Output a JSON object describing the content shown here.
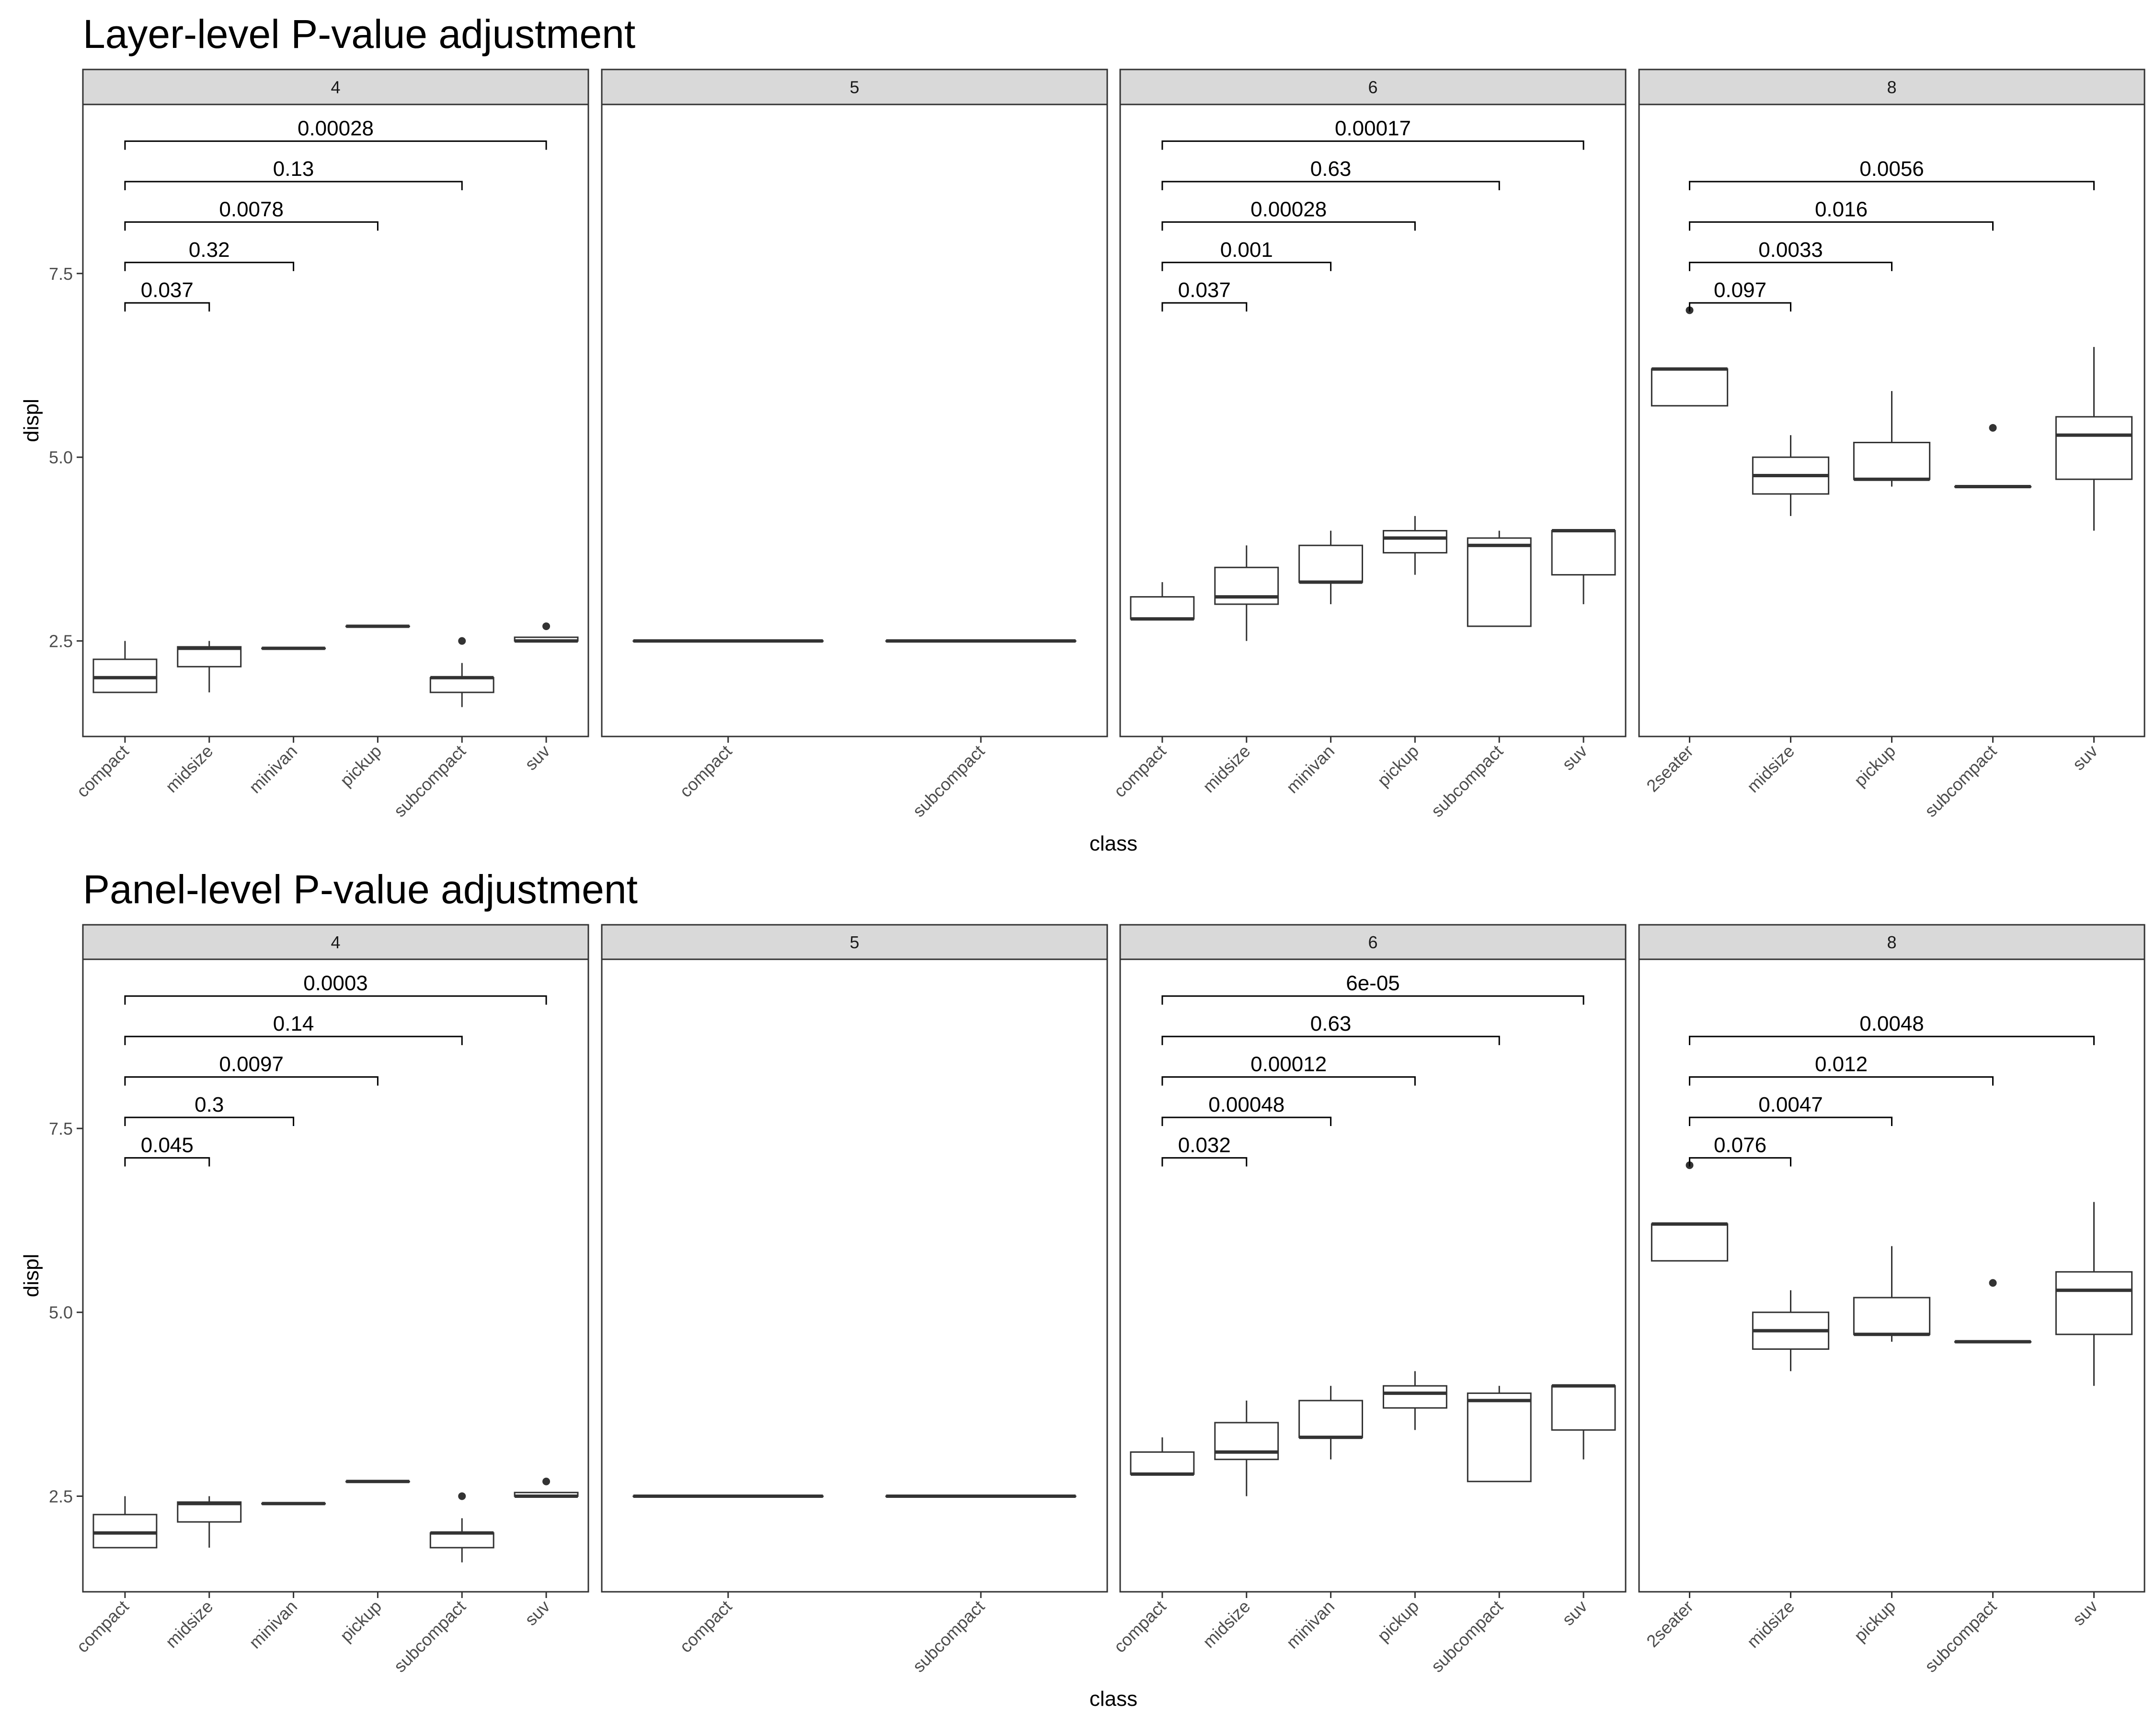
{
  "chart_data": [
    {
      "type": "boxplot",
      "title": "Layer-level P-value adjustment",
      "xlabel": "class",
      "ylabel": "displ",
      "ylim": [
        1.2,
        9.8
      ],
      "yticks": [
        "2.5",
        "5.0",
        "7.5"
      ],
      "ytick_values": [
        2.5,
        5.0,
        7.5
      ],
      "grid": false,
      "panels": [
        {
          "strip": "4",
          "categories": [
            "compact",
            "midsize",
            "minivan",
            "pickup",
            "subcompact",
            "suv"
          ],
          "boxes": [
            {
              "min": 1.8,
              "q1": 1.8,
              "median": 2.0,
              "q3": 2.25,
              "max": 2.5,
              "outliers": []
            },
            {
              "min": 1.8,
              "q1": 2.15,
              "median": 2.4,
              "q3": 2.42,
              "max": 2.5,
              "outliers": []
            },
            {
              "min": 2.4,
              "q1": 2.4,
              "median": 2.4,
              "q3": 2.4,
              "max": 2.4,
              "outliers": []
            },
            {
              "min": 2.7,
              "q1": 2.7,
              "median": 2.7,
              "q3": 2.7,
              "max": 2.7,
              "outliers": []
            },
            {
              "min": 1.6,
              "q1": 1.8,
              "median": 2.0,
              "q3": 2.0,
              "max": 2.2,
              "outliers": [
                2.5
              ]
            },
            {
              "min": 2.5,
              "q1": 2.5,
              "median": 2.5,
              "q3": 2.55,
              "max": 2.55,
              "outliers": [
                2.7
              ]
            }
          ],
          "brackets": [
            {
              "from": 0,
              "to": 1,
              "y": 7.1,
              "label": "0.037"
            },
            {
              "from": 0,
              "to": 2,
              "y": 7.65,
              "label": "0.32"
            },
            {
              "from": 0,
              "to": 3,
              "y": 8.2,
              "label": "0.0078"
            },
            {
              "from": 0,
              "to": 4,
              "y": 8.75,
              "label": "0.13"
            },
            {
              "from": 0,
              "to": 5,
              "y": 9.3,
              "label": "0.00028"
            }
          ]
        },
        {
          "strip": "5",
          "categories": [
            "compact",
            "subcompact"
          ],
          "boxes": [
            {
              "min": 2.5,
              "q1": 2.5,
              "median": 2.5,
              "q3": 2.5,
              "max": 2.5,
              "outliers": []
            },
            {
              "min": 2.5,
              "q1": 2.5,
              "median": 2.5,
              "q3": 2.5,
              "max": 2.5,
              "outliers": []
            }
          ],
          "brackets": []
        },
        {
          "strip": "6",
          "categories": [
            "compact",
            "midsize",
            "minivan",
            "pickup",
            "subcompact",
            "suv"
          ],
          "boxes": [
            {
              "min": 2.8,
              "q1": 2.8,
              "median": 2.8,
              "q3": 3.1,
              "max": 3.3,
              "outliers": []
            },
            {
              "min": 2.5,
              "q1": 3.0,
              "median": 3.1,
              "q3": 3.5,
              "max": 3.8,
              "outliers": []
            },
            {
              "min": 3.0,
              "q1": 3.3,
              "median": 3.3,
              "q3": 3.8,
              "max": 4.0,
              "outliers": []
            },
            {
              "min": 3.4,
              "q1": 3.7,
              "median": 3.9,
              "q3": 4.0,
              "max": 4.2,
              "outliers": []
            },
            {
              "min": 2.7,
              "q1": 2.7,
              "median": 3.8,
              "q3": 3.9,
              "max": 4.0,
              "outliers": []
            },
            {
              "min": 3.0,
              "q1": 3.4,
              "median": 4.0,
              "q3": 4.0,
              "max": 4.0,
              "outliers": []
            }
          ],
          "brackets": [
            {
              "from": 0,
              "to": 1,
              "y": 7.1,
              "label": "0.037"
            },
            {
              "from": 0,
              "to": 2,
              "y": 7.65,
              "label": "0.001"
            },
            {
              "from": 0,
              "to": 3,
              "y": 8.2,
              "label": "0.00028"
            },
            {
              "from": 0,
              "to": 4,
              "y": 8.75,
              "label": "0.63"
            },
            {
              "from": 0,
              "to": 5,
              "y": 9.3,
              "label": "0.00017"
            }
          ]
        },
        {
          "strip": "8",
          "categories": [
            "2seater",
            "midsize",
            "pickup",
            "subcompact",
            "suv"
          ],
          "boxes": [
            {
              "min": 5.7,
              "q1": 5.7,
              "median": 6.2,
              "q3": 6.2,
              "max": 6.2,
              "outliers": [
                7.0
              ]
            },
            {
              "min": 4.2,
              "q1": 4.5,
              "median": 4.75,
              "q3": 5.0,
              "max": 5.3,
              "outliers": []
            },
            {
              "min": 4.6,
              "q1": 4.7,
              "median": 4.7,
              "q3": 5.2,
              "max": 5.9,
              "outliers": []
            },
            {
              "min": 4.6,
              "q1": 4.6,
              "median": 4.6,
              "q3": 4.6,
              "max": 4.6,
              "outliers": [
                5.4
              ]
            },
            {
              "min": 4.0,
              "q1": 4.7,
              "median": 5.3,
              "q3": 5.55,
              "max": 6.5,
              "outliers": []
            }
          ],
          "brackets": [
            {
              "from": 0,
              "to": 1,
              "y": 7.1,
              "label": "0.097"
            },
            {
              "from": 0,
              "to": 2,
              "y": 7.65,
              "label": "0.0033"
            },
            {
              "from": 0,
              "to": 3,
              "y": 8.2,
              "label": "0.016"
            },
            {
              "from": 0,
              "to": 4,
              "y": 8.75,
              "label": "0.0056"
            }
          ]
        }
      ]
    },
    {
      "type": "boxplot",
      "title": "Panel-level P-value adjustment",
      "xlabel": "class",
      "ylabel": "displ",
      "ylim": [
        1.2,
        9.8
      ],
      "yticks": [
        "2.5",
        "5.0",
        "7.5"
      ],
      "ytick_values": [
        2.5,
        5.0,
        7.5
      ],
      "grid": false,
      "panels": [
        {
          "strip": "4",
          "categories": [
            "compact",
            "midsize",
            "minivan",
            "pickup",
            "subcompact",
            "suv"
          ],
          "boxes": [
            {
              "min": 1.8,
              "q1": 1.8,
              "median": 2.0,
              "q3": 2.25,
              "max": 2.5,
              "outliers": []
            },
            {
              "min": 1.8,
              "q1": 2.15,
              "median": 2.4,
              "q3": 2.42,
              "max": 2.5,
              "outliers": []
            },
            {
              "min": 2.4,
              "q1": 2.4,
              "median": 2.4,
              "q3": 2.4,
              "max": 2.4,
              "outliers": []
            },
            {
              "min": 2.7,
              "q1": 2.7,
              "median": 2.7,
              "q3": 2.7,
              "max": 2.7,
              "outliers": []
            },
            {
              "min": 1.6,
              "q1": 1.8,
              "median": 2.0,
              "q3": 2.0,
              "max": 2.2,
              "outliers": [
                2.5
              ]
            },
            {
              "min": 2.5,
              "q1": 2.5,
              "median": 2.5,
              "q3": 2.55,
              "max": 2.55,
              "outliers": [
                2.7
              ]
            }
          ],
          "brackets": [
            {
              "from": 0,
              "to": 1,
              "y": 7.1,
              "label": "0.045"
            },
            {
              "from": 0,
              "to": 2,
              "y": 7.65,
              "label": "0.3"
            },
            {
              "from": 0,
              "to": 3,
              "y": 8.2,
              "label": "0.0097"
            },
            {
              "from": 0,
              "to": 4,
              "y": 8.75,
              "label": "0.14"
            },
            {
              "from": 0,
              "to": 5,
              "y": 9.3,
              "label": "0.0003"
            }
          ]
        },
        {
          "strip": "5",
          "categories": [
            "compact",
            "subcompact"
          ],
          "boxes": [
            {
              "min": 2.5,
              "q1": 2.5,
              "median": 2.5,
              "q3": 2.5,
              "max": 2.5,
              "outliers": []
            },
            {
              "min": 2.5,
              "q1": 2.5,
              "median": 2.5,
              "q3": 2.5,
              "max": 2.5,
              "outliers": []
            }
          ],
          "brackets": []
        },
        {
          "strip": "6",
          "categories": [
            "compact",
            "midsize",
            "minivan",
            "pickup",
            "subcompact",
            "suv"
          ],
          "boxes": [
            {
              "min": 2.8,
              "q1": 2.8,
              "median": 2.8,
              "q3": 3.1,
              "max": 3.3,
              "outliers": []
            },
            {
              "min": 2.5,
              "q1": 3.0,
              "median": 3.1,
              "q3": 3.5,
              "max": 3.8,
              "outliers": []
            },
            {
              "min": 3.0,
              "q1": 3.3,
              "median": 3.3,
              "q3": 3.8,
              "max": 4.0,
              "outliers": []
            },
            {
              "min": 3.4,
              "q1": 3.7,
              "median": 3.9,
              "q3": 4.0,
              "max": 4.2,
              "outliers": []
            },
            {
              "min": 2.7,
              "q1": 2.7,
              "median": 3.8,
              "q3": 3.9,
              "max": 4.0,
              "outliers": []
            },
            {
              "min": 3.0,
              "q1": 3.4,
              "median": 4.0,
              "q3": 4.0,
              "max": 4.0,
              "outliers": []
            }
          ],
          "brackets": [
            {
              "from": 0,
              "to": 1,
              "y": 7.1,
              "label": "0.032"
            },
            {
              "from": 0,
              "to": 2,
              "y": 7.65,
              "label": "0.00048"
            },
            {
              "from": 0,
              "to": 3,
              "y": 8.2,
              "label": "0.00012"
            },
            {
              "from": 0,
              "to": 4,
              "y": 8.75,
              "label": "0.63"
            },
            {
              "from": 0,
              "to": 5,
              "y": 9.3,
              "label": "6e-05"
            }
          ]
        },
        {
          "strip": "8",
          "categories": [
            "2seater",
            "midsize",
            "pickup",
            "subcompact",
            "suv"
          ],
          "boxes": [
            {
              "min": 5.7,
              "q1": 5.7,
              "median": 6.2,
              "q3": 6.2,
              "max": 6.2,
              "outliers": [
                7.0
              ]
            },
            {
              "min": 4.2,
              "q1": 4.5,
              "median": 4.75,
              "q3": 5.0,
              "max": 5.3,
              "outliers": []
            },
            {
              "min": 4.6,
              "q1": 4.7,
              "median": 4.7,
              "q3": 5.2,
              "max": 5.9,
              "outliers": []
            },
            {
              "min": 4.6,
              "q1": 4.6,
              "median": 4.6,
              "q3": 4.6,
              "max": 4.6,
              "outliers": [
                5.4
              ]
            },
            {
              "min": 4.0,
              "q1": 4.7,
              "median": 5.3,
              "q3": 5.55,
              "max": 6.5,
              "outliers": []
            }
          ],
          "brackets": [
            {
              "from": 0,
              "to": 1,
              "y": 7.1,
              "label": "0.076"
            },
            {
              "from": 0,
              "to": 2,
              "y": 7.65,
              "label": "0.0047"
            },
            {
              "from": 0,
              "to": 3,
              "y": 8.2,
              "label": "0.012"
            },
            {
              "from": 0,
              "to": 4,
              "y": 8.75,
              "label": "0.0048"
            }
          ]
        }
      ]
    }
  ]
}
